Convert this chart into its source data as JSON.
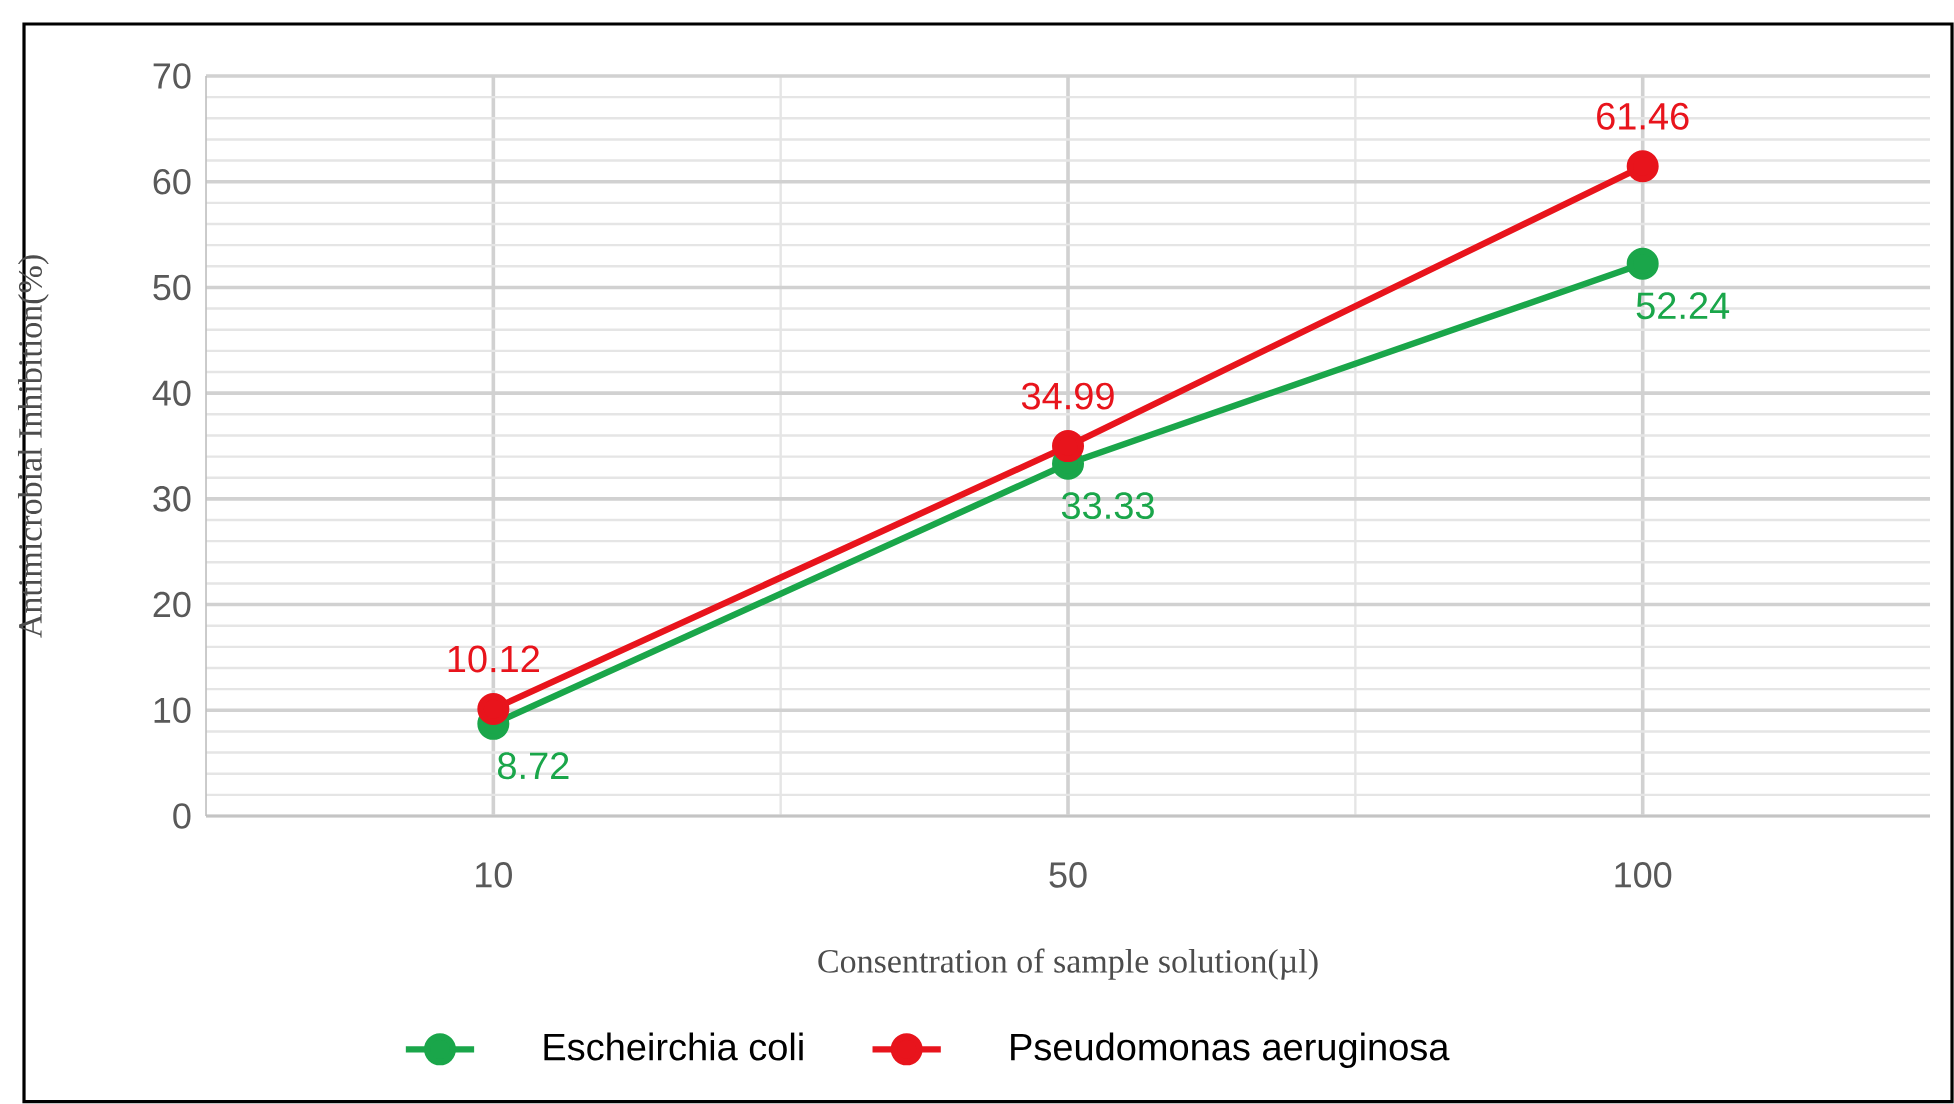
{
  "chart_data": {
    "type": "line",
    "xlabel": "Consentration of sample solution(µl)",
    "ylabel": "Antimicrobial Inhibition(%)",
    "categories": [
      "10",
      "50",
      "100"
    ],
    "series": [
      {
        "name": "Escheirchia coli",
        "color": "#1aa64a",
        "values": [
          8.72,
          33.33,
          52.24
        ]
      },
      {
        "name": "Pseudomonas aeruginosa",
        "color": "#e8141c",
        "values": [
          10.12,
          34.99,
          61.46
        ]
      }
    ],
    "ylim": [
      0,
      70
    ],
    "yticks": [
      0,
      10,
      20,
      30,
      40,
      50,
      60,
      70
    ],
    "grid": true,
    "legend": "bottom",
    "marker": "circle",
    "line_style": "solid",
    "data_labels": true
  }
}
